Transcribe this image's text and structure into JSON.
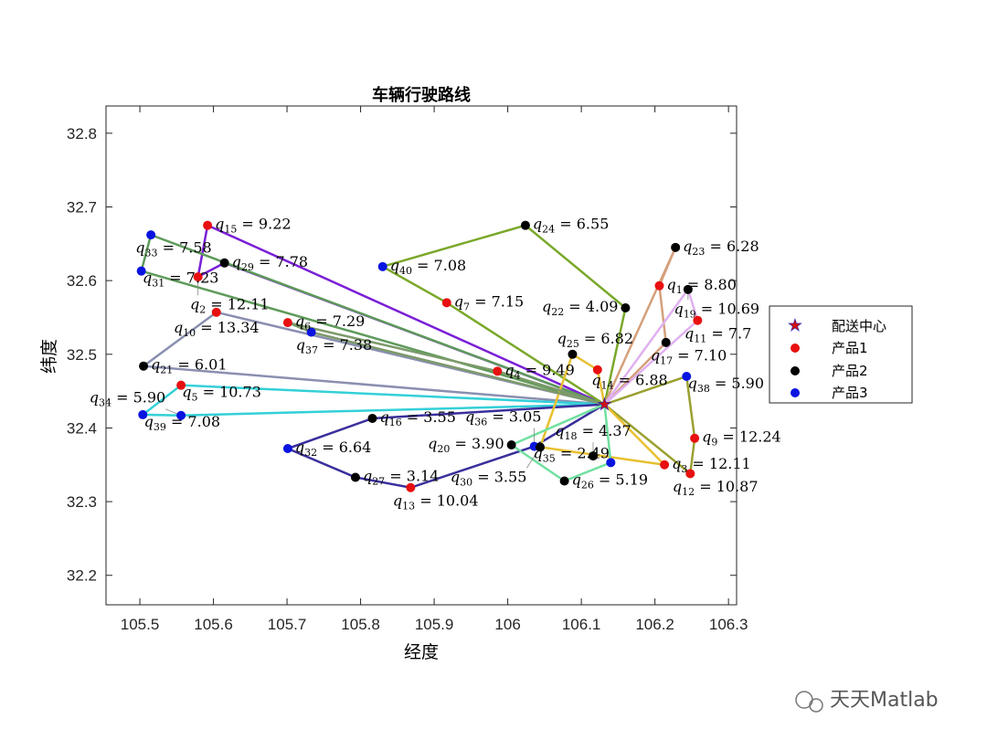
{
  "chart_data": {
    "type": "scatter",
    "title": "车辆行驶路线",
    "xlabel": "经度",
    "ylabel": "纬度",
    "xlim": [
      105.454,
      106.311
    ],
    "ylim": [
      32.16,
      32.837
    ],
    "xticks": [
      "105.5",
      "105.6",
      "105.7",
      "105.8",
      "105.9",
      "106",
      "106.1",
      "106.2",
      "106.3"
    ],
    "xtick_values": [
      105.5,
      105.6,
      105.7,
      105.8,
      105.9,
      106.0,
      106.1,
      106.2,
      106.3
    ],
    "yticks": [
      "32.2",
      "32.3",
      "32.4",
      "32.5",
      "32.6",
      "32.7",
      "32.8"
    ],
    "ytick_values": [
      32.2,
      32.3,
      32.4,
      32.5,
      32.6,
      32.7,
      32.8
    ],
    "grid": false,
    "legend_position": "outside-right",
    "legend": [
      "配送中心",
      "产品1",
      "产品2",
      "产品3"
    ],
    "colors": {
      "center": "#d01010",
      "p1": "#e81010",
      "p2": "#000000",
      "p3": "#0a14e0"
    },
    "depot": {
      "x": 106.1315,
      "y": 32.432
    },
    "points": [
      {
        "id": "15",
        "x": 105.592,
        "y": 32.675,
        "type": "p1",
        "value": "9.22"
      },
      {
        "id": "33",
        "x": 105.515,
        "y": 32.662,
        "type": "p3",
        "value": "7.58"
      },
      {
        "id": "29",
        "x": 105.615,
        "y": 32.624,
        "type": "p2",
        "value": "7.78"
      },
      {
        "id": "31",
        "x": 105.502,
        "y": 32.613,
        "type": "p3",
        "value": "7.23"
      },
      {
        "id": "2",
        "x": 105.579,
        "y": 32.605,
        "type": "p1",
        "value": "12.11"
      },
      {
        "id": "10",
        "x": 105.604,
        "y": 32.557,
        "type": "p1",
        "value": "13.34"
      },
      {
        "id": "6",
        "x": 105.701,
        "y": 32.543,
        "type": "p1",
        "value": "7.29"
      },
      {
        "id": "37",
        "x": 105.733,
        "y": 32.53,
        "type": "p3",
        "value": "7.38"
      },
      {
        "id": "21",
        "x": 105.505,
        "y": 32.484,
        "type": "p2",
        "value": "6.01"
      },
      {
        "id": "5",
        "x": 105.556,
        "y": 32.458,
        "type": "p1",
        "value": "10.73"
      },
      {
        "id": "39",
        "x": 105.504,
        "y": 32.418,
        "type": "p3",
        "value": "7.08"
      },
      {
        "id": "34",
        "x": 105.556,
        "y": 32.417,
        "type": "p3",
        "value": "5.90"
      },
      {
        "id": "16",
        "x": 105.816,
        "y": 32.413,
        "type": "p2",
        "value": "3.55"
      },
      {
        "id": "32",
        "x": 105.701,
        "y": 32.372,
        "type": "p3",
        "value": "6.64"
      },
      {
        "id": "27",
        "x": 105.793,
        "y": 32.333,
        "type": "p2",
        "value": "3.14"
      },
      {
        "id": "13",
        "x": 105.868,
        "y": 32.319,
        "type": "p1",
        "value": "10.04"
      },
      {
        "id": "40",
        "x": 105.83,
        "y": 32.619,
        "type": "p3",
        "value": "7.08"
      },
      {
        "id": "7",
        "x": 105.917,
        "y": 32.57,
        "type": "p1",
        "value": "7.15"
      },
      {
        "id": "24",
        "x": 106.024,
        "y": 32.675,
        "type": "p2",
        "value": "6.55"
      },
      {
        "id": "4",
        "x": 105.986,
        "y": 32.477,
        "type": "p1",
        "value": "9.49"
      },
      {
        "id": "23",
        "x": 106.228,
        "y": 32.645,
        "type": "p2",
        "value": "6.28"
      },
      {
        "id": "1",
        "x": 106.206,
        "y": 32.593,
        "type": "p1",
        "value": "8.80"
      },
      {
        "id": "19",
        "x": 106.245,
        "y": 32.588,
        "type": "p2",
        "value": "10.69"
      },
      {
        "id": "22",
        "x": 106.16,
        "y": 32.563,
        "type": "p2",
        "value": "4.09"
      },
      {
        "id": "11",
        "x": 106.258,
        "y": 32.546,
        "type": "p1",
        "value": "7.7"
      },
      {
        "id": "17",
        "x": 106.215,
        "y": 32.516,
        "type": "p2",
        "value": "7.10"
      },
      {
        "id": "25",
        "x": 106.088,
        "y": 32.5,
        "type": "p2",
        "value": "6.82"
      },
      {
        "id": "14",
        "x": 106.122,
        "y": 32.479,
        "type": "p1",
        "value": "6.88"
      },
      {
        "id": "38",
        "x": 106.243,
        "y": 32.47,
        "type": "p3",
        "value": "5.90"
      },
      {
        "id": "9",
        "x": 106.254,
        "y": 32.386,
        "type": "p1",
        "value": "12.24"
      },
      {
        "id": "3",
        "x": 106.213,
        "y": 32.35,
        "type": "p1",
        "value": "12.11"
      },
      {
        "id": "12",
        "x": 106.248,
        "y": 32.338,
        "type": "p1",
        "value": "10.87"
      },
      {
        "id": "26",
        "x": 106.077,
        "y": 32.328,
        "type": "p2",
        "value": "5.19"
      },
      {
        "id": "35",
        "x": 106.14,
        "y": 32.353,
        "type": "p3",
        "value": "2.49"
      },
      {
        "id": "18",
        "x": 106.116,
        "y": 32.362,
        "type": "p2",
        "value": "4.37"
      },
      {
        "id": "20",
        "x": 106.005,
        "y": 32.377,
        "type": "p2",
        "value": "3.90"
      },
      {
        "id": "36",
        "x": 106.036,
        "y": 32.375,
        "type": "p3",
        "value": "3.05"
      },
      {
        "id": "30",
        "x": 106.044,
        "y": 32.374,
        "type": "p2",
        "value": "3.55"
      }
    ],
    "routes": [
      {
        "color": "#7a1fd6",
        "stops": [
          "29",
          "2",
          "15"
        ]
      },
      {
        "color": "#5e9a5a",
        "stops": [
          "33",
          "31"
        ]
      },
      {
        "color": "#8a8fb0",
        "stops": [
          "21",
          "10"
        ]
      },
      {
        "color": "#33d0d8",
        "stops": [
          "34",
          "39",
          "5"
        ]
      },
      {
        "color": "#3a2f9c",
        "stops": [
          "16",
          "32",
          "27",
          "13",
          "36"
        ]
      },
      {
        "color": "#7aa82a",
        "stops": [
          "22",
          "24",
          "40",
          "7"
        ]
      },
      {
        "color": "#d4a07a",
        "stops": [
          "17",
          "1",
          "23"
        ]
      },
      {
        "color": "#e0b0f0",
        "stops": [
          "11",
          "19"
        ]
      },
      {
        "color": "#9aa030",
        "stops": [
          "38",
          "9",
          "12"
        ]
      },
      {
        "color": "#e8c030",
        "stops": [
          "14",
          "25",
          "30",
          "3"
        ]
      },
      {
        "color": "#70e0a0",
        "stops": [
          "20",
          "26",
          "35"
        ]
      },
      {
        "color": "#7c9a6a",
        "stops": [
          "37",
          "6",
          "4"
        ]
      }
    ]
  },
  "watermark": "天天Matlab"
}
